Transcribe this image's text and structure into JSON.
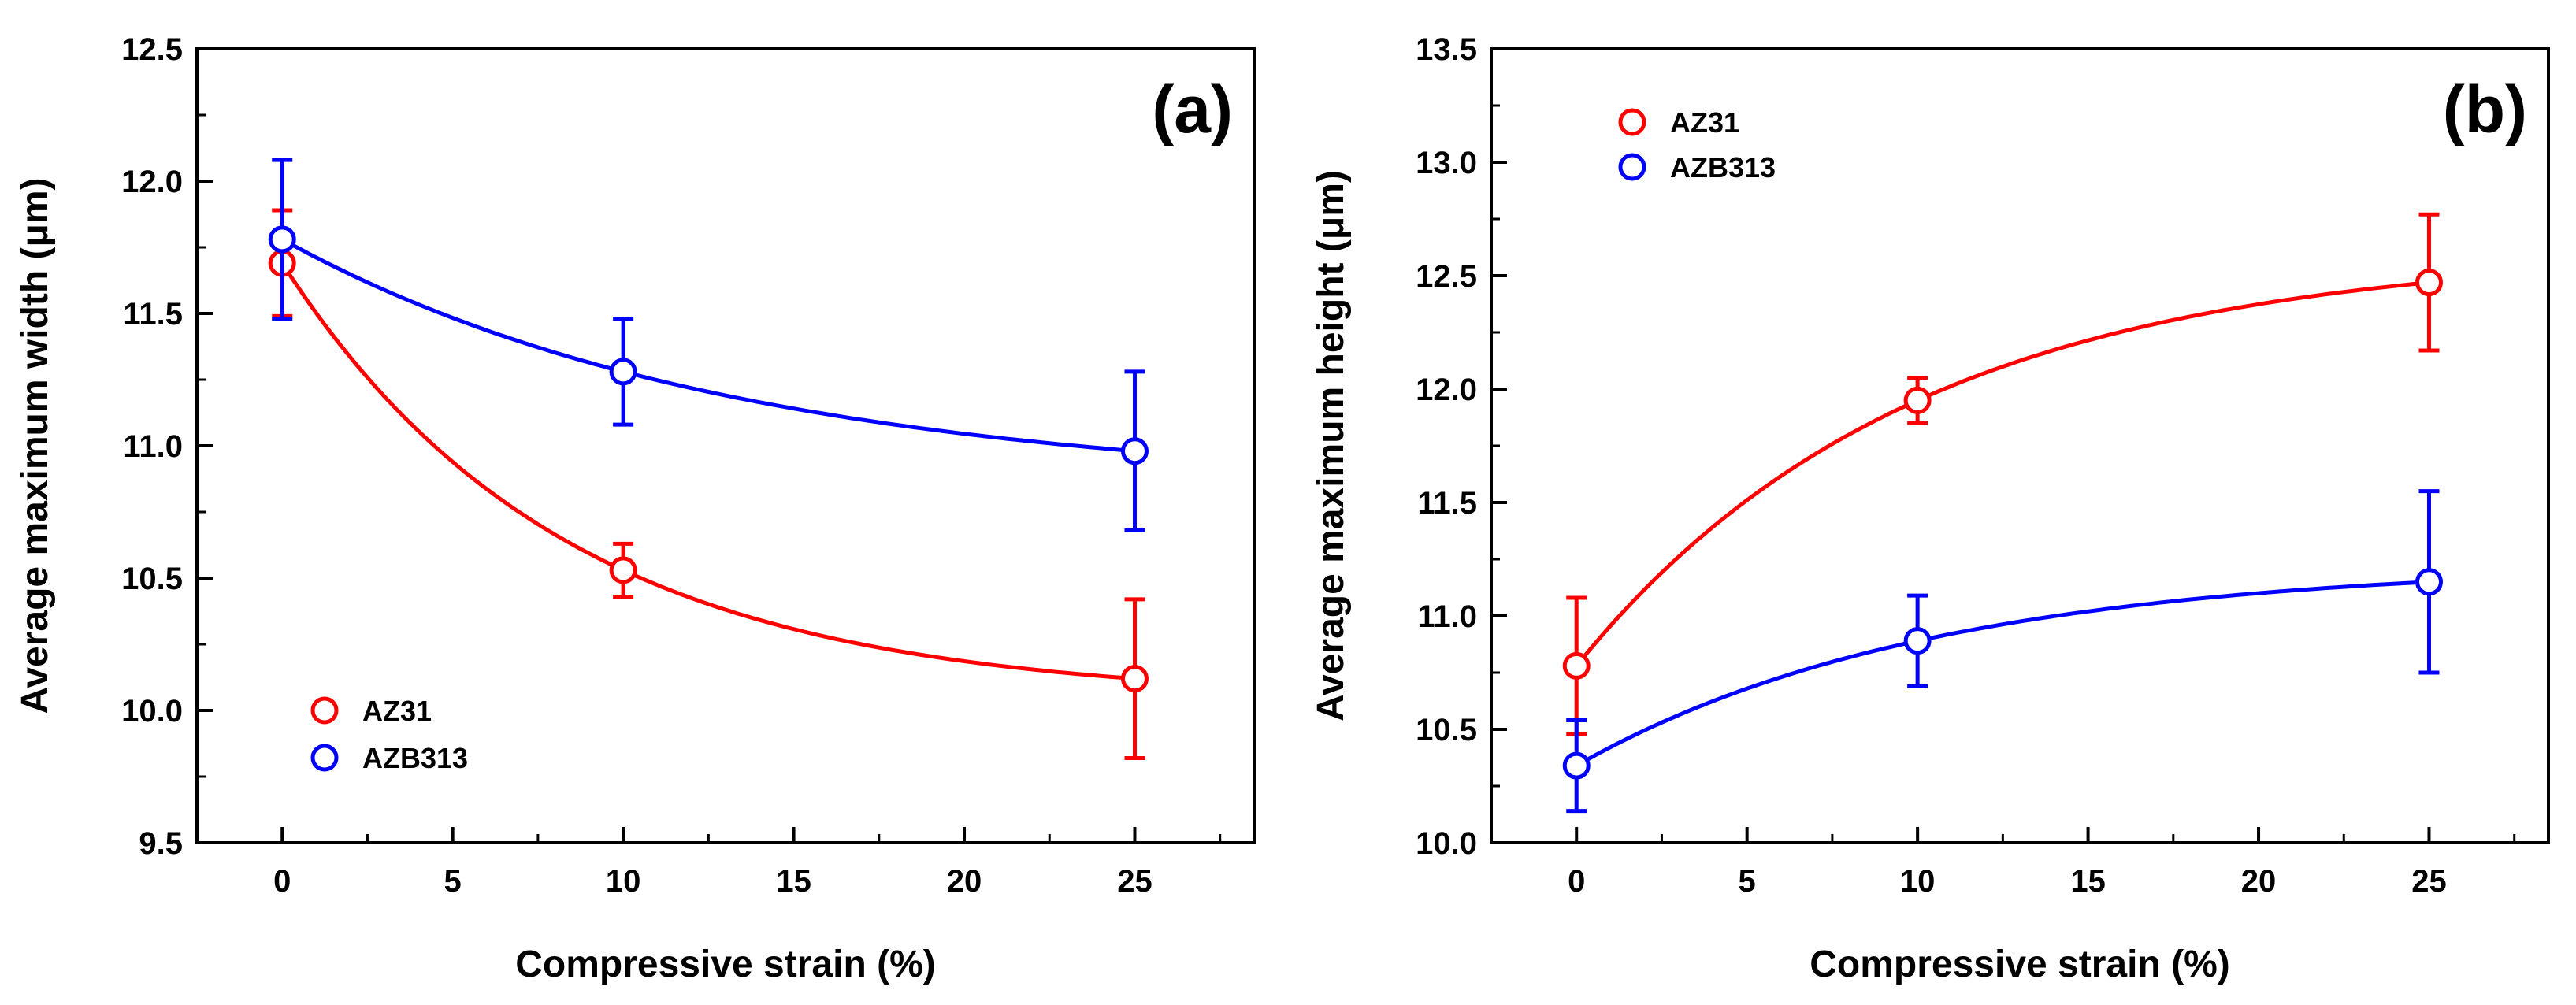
{
  "chart_data": [
    {
      "type": "scatter",
      "panel_label": "(a)",
      "xlabel": "Compressive strain (%)",
      "ylabel": "Average maximum width (μm)",
      "xlim": [
        -2.5,
        28.5
      ],
      "ylim": [
        9.5,
        12.5
      ],
      "xticks": [
        0,
        5,
        10,
        15,
        20,
        25
      ],
      "xtick_labels": [
        "0",
        "5",
        "10",
        "15",
        "20",
        "25"
      ],
      "yticks": [
        9.5,
        10.0,
        10.5,
        11.0,
        11.5,
        12.0,
        12.5
      ],
      "ytick_labels": [
        "9.5",
        "10.0",
        "10.5",
        "11.0",
        "11.5",
        "12.0",
        "12.5"
      ],
      "legend_position": "bottom-left",
      "series": [
        {
          "name": "AZ31",
          "color": "#ff0000",
          "x": [
            0,
            10,
            25
          ],
          "y": [
            11.69,
            10.53,
            10.12
          ],
          "error": [
            0.2,
            0.1,
            0.3
          ]
        },
        {
          "name": "AZB313",
          "color": "#0000ff",
          "x": [
            0,
            10,
            25
          ],
          "y": [
            11.78,
            11.28,
            10.98
          ],
          "error": [
            0.3,
            0.2,
            0.3
          ]
        }
      ]
    },
    {
      "type": "scatter",
      "panel_label": "(b)",
      "xlabel": "Compressive strain (%)",
      "ylabel": "Average maximum height (μm)",
      "xlim": [
        -2.5,
        28.5
      ],
      "ylim": [
        10.0,
        13.5
      ],
      "xticks": [
        0,
        5,
        10,
        15,
        20,
        25
      ],
      "xtick_labels": [
        "0",
        "5",
        "10",
        "15",
        "20",
        "25"
      ],
      "yticks": [
        10.0,
        10.5,
        11.0,
        11.5,
        12.0,
        12.5,
        13.0,
        13.5
      ],
      "ytick_labels": [
        "10.0",
        "10.5",
        "11.0",
        "11.5",
        "12.0",
        "12.5",
        "13.0",
        "13.5"
      ],
      "legend_position": "top-left",
      "series": [
        {
          "name": "AZ31",
          "color": "#ff0000",
          "x": [
            0,
            10,
            25
          ],
          "y": [
            10.78,
            11.95,
            12.47
          ],
          "error": [
            0.3,
            0.1,
            0.3
          ]
        },
        {
          "name": "AZB313",
          "color": "#0000ff",
          "x": [
            0,
            10,
            25
          ],
          "y": [
            10.34,
            10.89,
            11.15
          ],
          "error": [
            0.2,
            0.2,
            0.4
          ]
        }
      ]
    }
  ]
}
